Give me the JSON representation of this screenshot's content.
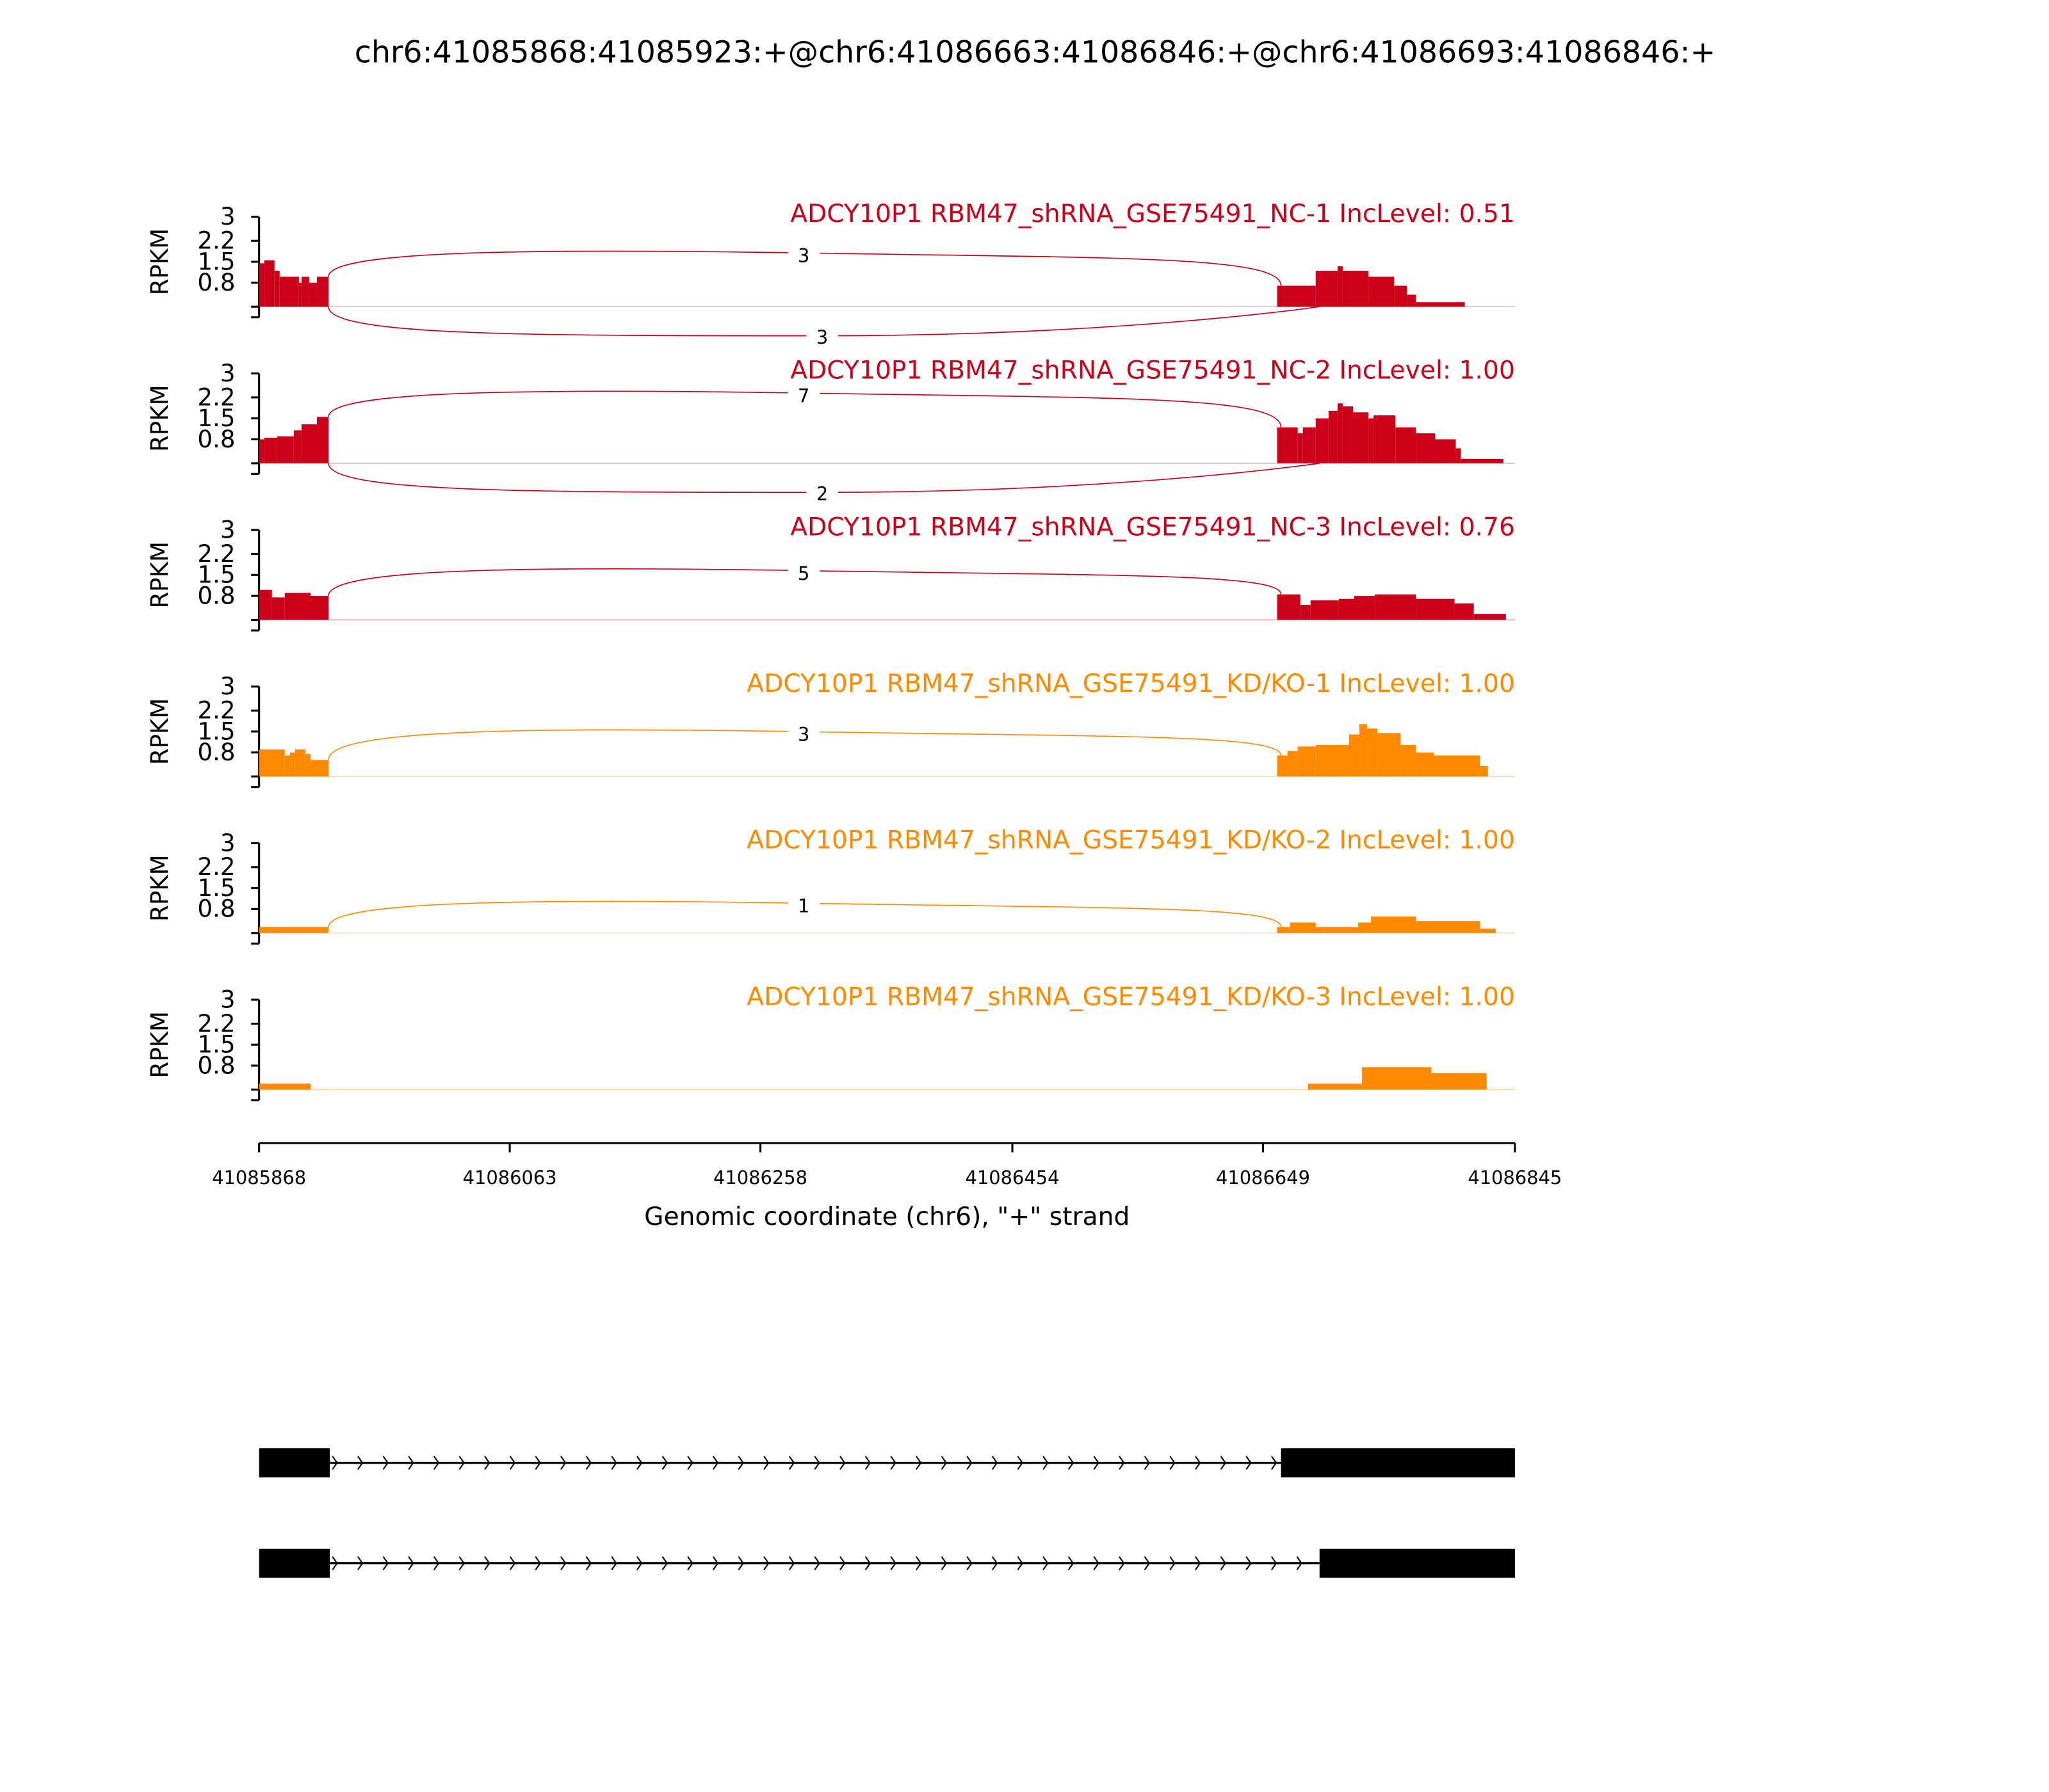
{
  "chart_data": {
    "type": "area",
    "title": "chr6:41085868:41085923:+@chr6:41086663:41086846:+@chr6:41086693:41086846:+",
    "xlabel": "Genomic coordinate (chr6), \"+\" strand",
    "ylabel": "RPKM",
    "xlim": [
      41085868,
      41086845
    ],
    "x_ticks": [
      "41085868",
      "41086063",
      "41086258",
      "41086454",
      "41086649",
      "41086845"
    ],
    "ylim": [
      0,
      3
    ],
    "y_ticks": [
      "0.8",
      "1.5",
      "2.2",
      "3"
    ],
    "x_origin": 41085868,
    "colors": {
      "NC": "#cc0018",
      "KD": "#ff8a00"
    },
    "panels": [
      {
        "title": "ADCY10P1 RBM47_shRNA_GSE75491_NC-1 IncLevel: 0.51",
        "group": "NC",
        "coverage": [
          [
            0,
            4,
            1.45
          ],
          [
            4,
            12,
            1.55
          ],
          [
            12,
            16,
            1.2
          ],
          [
            16,
            31,
            1.0
          ],
          [
            31,
            33,
            0.8
          ],
          [
            33,
            39,
            1.0
          ],
          [
            39,
            45,
            0.8
          ],
          [
            45,
            54,
            1.0
          ],
          [
            792,
            822,
            0.7
          ],
          [
            822,
            839,
            1.2
          ],
          [
            839,
            843,
            1.35
          ],
          [
            843,
            863,
            1.2
          ],
          [
            863,
            883,
            1.0
          ],
          [
            883,
            893,
            0.7
          ],
          [
            893,
            900,
            0.4
          ],
          [
            900,
            938,
            0.15
          ]
        ],
        "junctions": [
          {
            "from": 54,
            "to": 795,
            "count": "3",
            "side": "top"
          },
          {
            "from": 54,
            "to": 825,
            "count": "3",
            "side": "bottom"
          }
        ]
      },
      {
        "title": "ADCY10P1 RBM47_shRNA_GSE75491_NC-2 IncLevel: 1.00",
        "group": "NC",
        "coverage": [
          [
            0,
            4,
            0.8
          ],
          [
            4,
            14,
            0.85
          ],
          [
            14,
            27,
            0.9
          ],
          [
            27,
            33,
            1.1
          ],
          [
            33,
            45,
            1.3
          ],
          [
            45,
            54,
            1.55
          ],
          [
            792,
            808,
            1.2
          ],
          [
            808,
            812,
            1.0
          ],
          [
            812,
            822,
            1.2
          ],
          [
            822,
            832,
            1.5
          ],
          [
            832,
            839,
            1.75
          ],
          [
            839,
            843,
            2.0
          ],
          [
            843,
            851,
            1.9
          ],
          [
            851,
            863,
            1.7
          ],
          [
            863,
            867,
            1.5
          ],
          [
            867,
            884,
            1.6
          ],
          [
            884,
            900,
            1.2
          ],
          [
            900,
            915,
            1.0
          ],
          [
            915,
            931,
            0.8
          ],
          [
            931,
            935,
            0.5
          ],
          [
            935,
            968,
            0.15
          ]
        ],
        "junctions": [
          {
            "from": 54,
            "to": 795,
            "count": "7",
            "side": "top"
          },
          {
            "from": 54,
            "to": 825,
            "count": "2",
            "side": "bottom"
          }
        ]
      },
      {
        "title": "ADCY10P1 RBM47_shRNA_GSE75491_NC-3 IncLevel: 0.76",
        "group": "NC",
        "coverage": [
          [
            0,
            10,
            1.0
          ],
          [
            10,
            20,
            0.75
          ],
          [
            20,
            40,
            0.9
          ],
          [
            40,
            54,
            0.8
          ],
          [
            792,
            810,
            0.85
          ],
          [
            810,
            818,
            0.5
          ],
          [
            818,
            840,
            0.65
          ],
          [
            840,
            852,
            0.7
          ],
          [
            852,
            868,
            0.8
          ],
          [
            868,
            900,
            0.85
          ],
          [
            900,
            930,
            0.7
          ],
          [
            930,
            945,
            0.55
          ],
          [
            945,
            970,
            0.2
          ]
        ],
        "junctions": [
          {
            "from": 54,
            "to": 795,
            "count": "5",
            "side": "top"
          }
        ]
      },
      {
        "title": "ADCY10P1 RBM47_shRNA_GSE75491_KD/KO-1 IncLevel: 1.00",
        "group": "KD",
        "coverage": [
          [
            0,
            20,
            0.9
          ],
          [
            20,
            24,
            0.7
          ],
          [
            24,
            28,
            0.8
          ],
          [
            28,
            36,
            0.9
          ],
          [
            36,
            40,
            0.75
          ],
          [
            40,
            54,
            0.55
          ],
          [
            792,
            800,
            0.7
          ],
          [
            800,
            808,
            0.85
          ],
          [
            808,
            822,
            1.0
          ],
          [
            822,
            848,
            1.05
          ],
          [
            848,
            856,
            1.4
          ],
          [
            856,
            862,
            1.75
          ],
          [
            862,
            870,
            1.6
          ],
          [
            870,
            888,
            1.45
          ],
          [
            888,
            900,
            1.05
          ],
          [
            900,
            914,
            0.8
          ],
          [
            914,
            950,
            0.7
          ],
          [
            950,
            956,
            0.35
          ]
        ],
        "junctions": [
          {
            "from": 54,
            "to": 795,
            "count": "3",
            "side": "top"
          }
        ]
      },
      {
        "title": "ADCY10P1 RBM47_shRNA_GSE75491_KD/KO-2 IncLevel: 1.00",
        "group": "KD",
        "coverage": [
          [
            0,
            54,
            0.2
          ],
          [
            792,
            802,
            0.2
          ],
          [
            802,
            822,
            0.35
          ],
          [
            822,
            855,
            0.2
          ],
          [
            855,
            865,
            0.35
          ],
          [
            865,
            900,
            0.55
          ],
          [
            900,
            950,
            0.4
          ],
          [
            950,
            962,
            0.15
          ]
        ],
        "junctions": [
          {
            "from": 54,
            "to": 795,
            "count": "1",
            "side": "top"
          }
        ]
      },
      {
        "title": "ADCY10P1 RBM47_shRNA_GSE75491_KD/KO-3 IncLevel: 1.00",
        "group": "KD",
        "coverage": [
          [
            0,
            40,
            0.2
          ],
          [
            816,
            858,
            0.2
          ],
          [
            858,
            912,
            0.75
          ],
          [
            912,
            955,
            0.55
          ]
        ],
        "junctions": []
      }
    ],
    "transcripts": [
      {
        "exons": [
          [
            0,
            55
          ],
          [
            795,
            977
          ]
        ]
      },
      {
        "exons": [
          [
            0,
            55
          ],
          [
            825,
            977
          ]
        ]
      }
    ]
  }
}
